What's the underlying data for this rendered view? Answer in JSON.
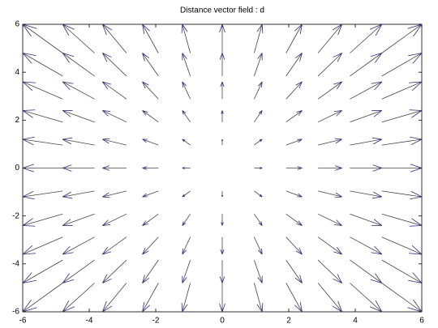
{
  "chart_data": {
    "type": "quiver",
    "title": "Distance vector field : d",
    "color": "#2b2b80",
    "x": [
      -6,
      -4.8,
      -3.6,
      -2.4,
      -1.2,
      0,
      1.2,
      2.4,
      3.6,
      4.8,
      6
    ],
    "y": [
      -6,
      -4.8,
      -3.6,
      -2.4,
      -1.2,
      0,
      1.2,
      2.4,
      3.6,
      4.8,
      6
    ],
    "u": [
      [
        -6,
        -4.8,
        -3.6,
        -2.4,
        -1.2,
        0,
        1.2,
        2.4,
        3.6,
        4.8,
        6
      ],
      [
        -6,
        -4.8,
        -3.6,
        -2.4,
        -1.2,
        0,
        1.2,
        2.4,
        3.6,
        4.8,
        6
      ],
      [
        -6,
        -4.8,
        -3.6,
        -2.4,
        -1.2,
        0,
        1.2,
        2.4,
        3.6,
        4.8,
        6
      ],
      [
        -6,
        -4.8,
        -3.6,
        -2.4,
        -1.2,
        0,
        1.2,
        2.4,
        3.6,
        4.8,
        6
      ],
      [
        -6,
        -4.8,
        -3.6,
        -2.4,
        -1.2,
        0,
        1.2,
        2.4,
        3.6,
        4.8,
        6
      ],
      [
        -6,
        -4.8,
        -3.6,
        -2.4,
        -1.2,
        0,
        1.2,
        2.4,
        3.6,
        4.8,
        6
      ],
      [
        -6,
        -4.8,
        -3.6,
        -2.4,
        -1.2,
        0,
        1.2,
        2.4,
        3.6,
        4.8,
        6
      ],
      [
        -6,
        -4.8,
        -3.6,
        -2.4,
        -1.2,
        0,
        1.2,
        2.4,
        3.6,
        4.8,
        6
      ],
      [
        -6,
        -4.8,
        -3.6,
        -2.4,
        -1.2,
        0,
        1.2,
        2.4,
        3.6,
        4.8,
        6
      ],
      [
        -6,
        -4.8,
        -3.6,
        -2.4,
        -1.2,
        0,
        1.2,
        2.4,
        3.6,
        4.8,
        6
      ],
      [
        -6,
        -4.8,
        -3.6,
        -2.4,
        -1.2,
        0,
        1.2,
        2.4,
        3.6,
        4.8,
        6
      ]
    ],
    "v": [
      [
        -6,
        -6,
        -6,
        -6,
        -6,
        -6,
        -6,
        -6,
        -6,
        -6,
        -6
      ],
      [
        -4.8,
        -4.8,
        -4.8,
        -4.8,
        -4.8,
        -4.8,
        -4.8,
        -4.8,
        -4.8,
        -4.8,
        -4.8
      ],
      [
        -3.6,
        -3.6,
        -3.6,
        -3.6,
        -3.6,
        -3.6,
        -3.6,
        -3.6,
        -3.6,
        -3.6,
        -3.6
      ],
      [
        -2.4,
        -2.4,
        -2.4,
        -2.4,
        -2.4,
        -2.4,
        -2.4,
        -2.4,
        -2.4,
        -2.4,
        -2.4
      ],
      [
        -1.2,
        -1.2,
        -1.2,
        -1.2,
        -1.2,
        -1.2,
        -1.2,
        -1.2,
        -1.2,
        -1.2,
        -1.2
      ],
      [
        0,
        0,
        0,
        0,
        0,
        0,
        0,
        0,
        0,
        0,
        0
      ],
      [
        1.2,
        1.2,
        1.2,
        1.2,
        1.2,
        1.2,
        1.2,
        1.2,
        1.2,
        1.2,
        1.2
      ],
      [
        2.4,
        2.4,
        2.4,
        2.4,
        2.4,
        2.4,
        2.4,
        2.4,
        2.4,
        2.4,
        2.4
      ],
      [
        3.6,
        3.6,
        3.6,
        3.6,
        3.6,
        3.6,
        3.6,
        3.6,
        3.6,
        3.6,
        3.6
      ],
      [
        4.8,
        4.8,
        4.8,
        4.8,
        4.8,
        4.8,
        4.8,
        4.8,
        4.8,
        4.8,
        4.8
      ],
      [
        6,
        6,
        6,
        6,
        6,
        6,
        6,
        6,
        6,
        6,
        6
      ]
    ],
    "xlim": [
      -6,
      6
    ],
    "ylim": [
      -6,
      6
    ],
    "xticks": [
      -6,
      -4,
      -2,
      0,
      2,
      4,
      6
    ],
    "yticks": [
      -6,
      -4,
      -2,
      0,
      2,
      4,
      6
    ]
  }
}
